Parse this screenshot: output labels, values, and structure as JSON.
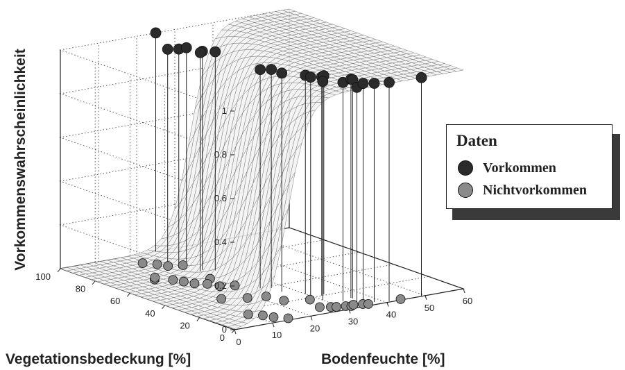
{
  "chart_data": {
    "type": "surface3d",
    "zlabel": "Vorkommenswahrscheinlichkeit",
    "xlabel": "Vegetationsbedeckung [%]",
    "ylabel": "Bodenfeuchte [%]",
    "x_range": [
      0,
      100
    ],
    "y_range": [
      0,
      60
    ],
    "z_range": [
      0,
      1
    ],
    "x_ticks": [
      "0",
      "20",
      "40",
      "60",
      "80",
      "100"
    ],
    "y_ticks": [
      "0",
      "10",
      "20",
      "30",
      "40",
      "50",
      "60"
    ],
    "z_ticks": [
      "0",
      "0.2",
      "0.4",
      "0.6",
      "0.8",
      "1"
    ],
    "grid": true,
    "legend": {
      "title": "Daten",
      "placement": "right",
      "entries": [
        "Vorkommen",
        "Nichtvorkommen"
      ]
    },
    "series": [
      {
        "name": "Vorkommen",
        "color": "#2b2b2b",
        "points": [
          [
            100,
            25,
            1
          ],
          [
            78,
            21,
            1
          ],
          [
            78,
            23,
            1
          ],
          [
            68,
            26,
            1
          ],
          [
            71,
            24,
            1
          ],
          [
            70,
            23,
            1
          ],
          [
            80,
            19,
            1
          ],
          [
            40,
            25,
            1
          ],
          [
            38,
            27,
            1
          ],
          [
            32,
            27,
            1
          ],
          [
            25,
            30,
            1
          ],
          [
            22,
            30,
            1
          ],
          [
            20,
            32,
            1
          ],
          [
            21,
            33,
            1
          ],
          [
            15,
            30,
            1
          ],
          [
            10,
            33,
            1
          ],
          [
            12,
            36,
            1
          ],
          [
            11,
            36,
            1
          ],
          [
            2,
            33,
            1
          ],
          [
            5,
            36,
            1
          ],
          [
            3,
            38,
            1
          ],
          [
            1,
            41,
            1
          ],
          [
            0,
            49,
            1
          ]
        ]
      },
      {
        "name": "Nichtvorkommen",
        "color": "#8a8a8a",
        "points": [
          [
            90,
            17,
            0
          ],
          [
            86,
            19,
            0
          ],
          [
            82,
            20,
            0
          ],
          [
            80,
            23,
            0
          ],
          [
            70,
            11,
            0
          ],
          [
            72,
            12,
            0
          ],
          [
            66,
            14,
            0
          ],
          [
            62,
            15,
            0
          ],
          [
            58,
            16,
            0
          ],
          [
            60,
            21,
            0
          ],
          [
            55,
            18,
            0
          ],
          [
            50,
            19,
            0
          ],
          [
            48,
            22,
            0
          ],
          [
            36,
            13,
            0
          ],
          [
            32,
            18,
            0
          ],
          [
            30,
            22,
            0
          ],
          [
            22,
            23,
            0
          ],
          [
            14,
            10,
            0
          ],
          [
            10,
            12,
            0
          ],
          [
            6,
            13,
            0
          ],
          [
            2,
            15,
            0
          ],
          [
            8,
            26,
            0
          ],
          [
            6,
            28,
            0
          ],
          [
            5,
            29,
            0
          ],
          [
            4,
            31,
            0
          ],
          [
            3,
            32,
            0
          ],
          [
            4,
            33,
            0
          ],
          [
            3,
            35,
            0
          ],
          [
            2,
            36,
            0
          ],
          [
            1,
            44,
            0
          ],
          [
            18,
            28,
            0
          ]
        ]
      }
    ]
  }
}
